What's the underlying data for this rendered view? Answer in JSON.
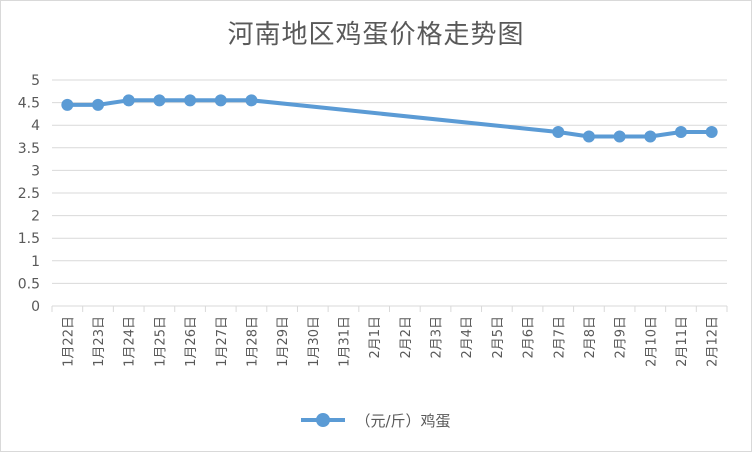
{
  "chart_data": {
    "type": "line",
    "title": "河南地区鸡蛋价格走势图",
    "xlabel": "",
    "ylabel": "",
    "ylim": [
      0,
      5
    ],
    "ytick_step": 0.5,
    "ytick_labels": [
      "0",
      "0.5",
      "1",
      "1.5",
      "2",
      "2.5",
      "3",
      "3.5",
      "4",
      "4.5",
      "5"
    ],
    "grid": true,
    "legend_position": "bottom",
    "colors": {
      "series": "#5b9bd5",
      "grid": "#d9d9d9",
      "text": "#595959"
    },
    "categories": [
      "1月22日",
      "1月23日",
      "1月24日",
      "1月25日",
      "1月26日",
      "1月27日",
      "1月28日",
      "1月29日",
      "1月30日",
      "1月31日",
      "2月1日",
      "2月2日",
      "2月3日",
      "2月4日",
      "2月5日",
      "2月6日",
      "2月7日",
      "2月8日",
      "2月9日",
      "2月10日",
      "2月11日",
      "2月12日"
    ],
    "series": [
      {
        "name": "（元/斤）鸡蛋",
        "values": [
          4.45,
          4.45,
          4.55,
          4.55,
          4.55,
          4.55,
          4.55,
          null,
          null,
          null,
          null,
          null,
          null,
          null,
          null,
          null,
          3.85,
          3.75,
          3.75,
          3.75,
          3.85,
          3.85
        ]
      }
    ]
  }
}
